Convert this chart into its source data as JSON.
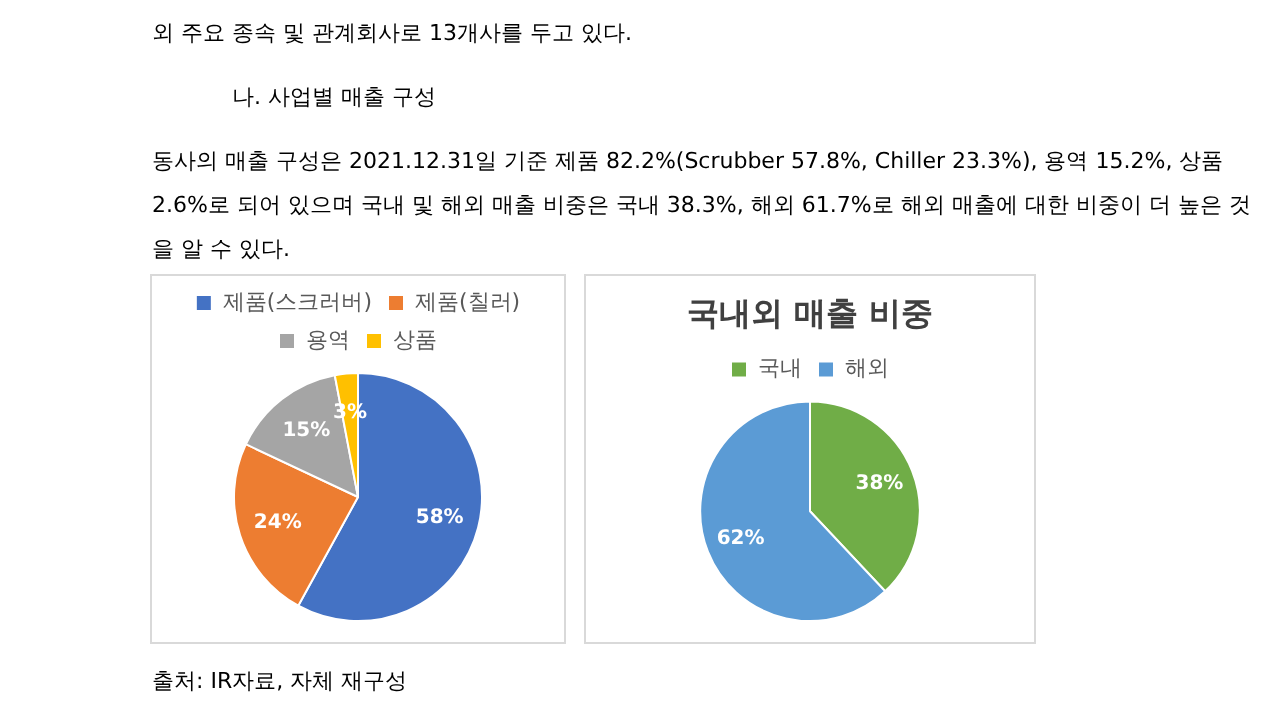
{
  "chart_data": [
    {
      "type": "pie",
      "categories": [
        "제품(스크러버)",
        "제품(칠러)",
        "용역",
        "상품"
      ],
      "values": [
        58,
        24,
        15,
        3
      ],
      "value_labels": [
        "58%",
        "24%",
        "15%",
        "3%"
      ],
      "colors": [
        "#4472c4",
        "#ed7d31",
        "#a5a5a5",
        "#ffc000"
      ],
      "legend": "top",
      "annotations": [
        "외 주요 종속 및 관계회사로 13개사를 두고 있다.",
        "나. 사업별 매출 구성",
        "동사의 매출 구성은 2021.12.31일 기준 제품 82.2%(Scrubber 57.8%, Chiller 23.3%), 용역 15.2%, 상품 2.6%로 되어 있으며 국내 및 해외 매출 비중은 국내 38.3%, 해외 61.7%로 해외 매출에 대한 비중이 더 높은 것을 알 수 있다.",
        "출처: IR자료, 자체 재구성"
      ]
    },
    {
      "type": "pie",
      "title": "국내외 매출 비중",
      "categories": [
        "국내",
        "해외"
      ],
      "values": [
        38,
        62
      ],
      "value_labels": [
        "38%",
        "62%"
      ],
      "colors": [
        "#70ad47",
        "#5b9bd5"
      ],
      "legend": "top"
    }
  ]
}
